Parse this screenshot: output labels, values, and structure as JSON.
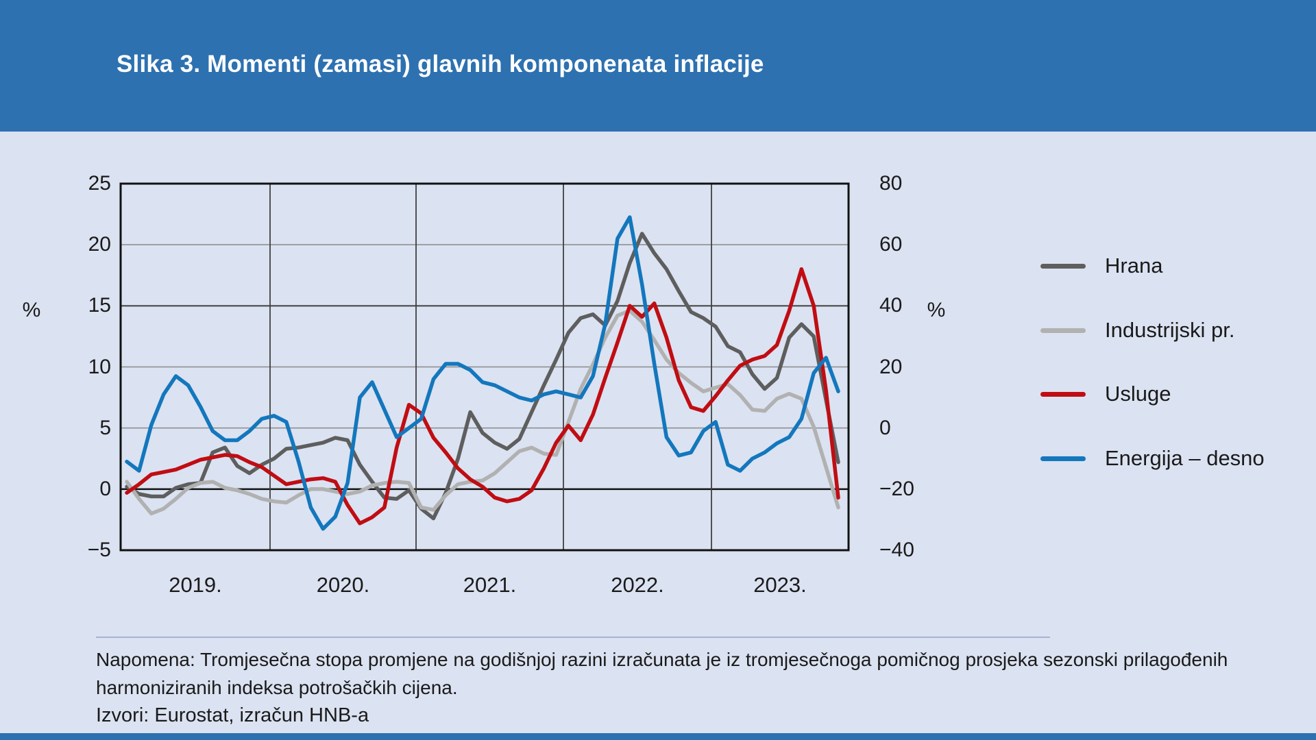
{
  "header": {
    "title": "Slika 3. Momenti (zamasi) glavnih komponenata inflacije"
  },
  "chart_data": {
    "type": "line",
    "frequency": "monthly",
    "period_start": "2019-01",
    "period_end": "2023-11",
    "x_axis": {
      "year_labels": [
        "2019.",
        "2020.",
        "2021.",
        "2022.",
        "2023."
      ]
    },
    "left_axis": {
      "unit_label": "%",
      "min": -5,
      "max": 25,
      "ticks": [
        25,
        20,
        15,
        10,
        5,
        0,
        -5
      ]
    },
    "right_axis": {
      "unit_label": "%",
      "min": -40,
      "max": 80,
      "ticks": [
        80,
        60,
        40,
        20,
        0,
        -20,
        -40
      ]
    },
    "grid": {
      "horizontal": true,
      "vertical": "year-boundaries"
    },
    "legend_position": "right",
    "series": [
      {
        "name": "Hrana",
        "axis": "left",
        "color": "#5e5e5e",
        "values": [
          0.2,
          -0.4,
          -0.6,
          -0.6,
          0.1,
          0.4,
          0.5,
          3.0,
          3.4,
          1.9,
          1.3,
          2.0,
          2.5,
          3.3,
          3.4,
          3.6,
          3.8,
          4.2,
          4.0,
          2.0,
          0.6,
          -0.7,
          -0.8,
          -0.1,
          -1.6,
          -2.4,
          -0.3,
          2.5,
          6.3,
          4.6,
          3.8,
          3.3,
          4.1,
          6.3,
          8.5,
          10.6,
          12.8,
          14.0,
          14.3,
          13.4,
          15.4,
          18.5,
          20.9,
          19.3,
          18.0,
          16.2,
          14.5,
          14.0,
          13.3,
          11.7,
          11.2,
          9.4,
          8.2,
          9.1,
          12.4,
          13.5,
          12.5,
          7.3,
          2.2
        ]
      },
      {
        "name": "Industrijski pr.",
        "axis": "left",
        "color": "#b1b1b1",
        "values": [
          0.6,
          -0.8,
          -2.0,
          -1.6,
          -0.8,
          0.1,
          0.5,
          0.6,
          0.1,
          -0.1,
          -0.4,
          -0.8,
          -1.0,
          -1.1,
          -0.5,
          0.0,
          0.0,
          -0.2,
          -0.4,
          -0.2,
          0.3,
          0.5,
          0.6,
          0.5,
          -1.5,
          -1.7,
          -0.5,
          0.4,
          0.6,
          0.7,
          1.3,
          2.2,
          3.1,
          3.4,
          2.9,
          2.8,
          5.5,
          8.2,
          10.2,
          12.4,
          14.2,
          14.6,
          13.7,
          12.2,
          10.6,
          9.5,
          8.7,
          8.0,
          8.3,
          8.6,
          7.7,
          6.5,
          6.4,
          7.4,
          7.8,
          7.4,
          5.1,
          1.8,
          -1.5
        ]
      },
      {
        "name": "Usluge",
        "axis": "left",
        "color": "#c00d13",
        "values": [
          -0.3,
          0.4,
          1.2,
          1.4,
          1.6,
          2.0,
          2.4,
          2.6,
          2.8,
          2.7,
          2.2,
          1.8,
          1.1,
          0.4,
          0.6,
          0.8,
          0.9,
          0.6,
          -1.3,
          -2.8,
          -2.3,
          -1.5,
          3.4,
          6.9,
          6.2,
          4.2,
          3.0,
          1.7,
          0.8,
          0.2,
          -0.7,
          -1.0,
          -0.8,
          -0.1,
          1.7,
          3.8,
          5.2,
          4.0,
          6.1,
          9.1,
          12.0,
          15.0,
          14.1,
          15.2,
          12.4,
          8.9,
          6.7,
          6.4,
          7.6,
          8.9,
          10.1,
          10.6,
          10.9,
          11.8,
          14.6,
          18.0,
          15.0,
          8.1,
          -0.7
        ]
      },
      {
        "name": "Energija – desno",
        "axis": "right",
        "color": "#1377bd",
        "values": [
          -11,
          -14,
          1,
          11,
          17,
          14,
          7,
          -1,
          -4,
          -4,
          -1,
          3,
          4,
          2,
          -11,
          -26,
          -33,
          -29,
          -18,
          10,
          15,
          6,
          -3,
          0,
          3,
          16,
          21,
          21,
          19,
          15,
          14,
          12,
          10,
          9,
          11,
          12,
          11,
          10,
          17,
          34,
          62,
          69,
          47,
          21,
          -3,
          -9,
          -8,
          -1,
          2,
          -12,
          -14,
          -10,
          -8,
          -5,
          -3,
          3,
          18,
          23,
          12
        ]
      }
    ]
  },
  "footer": {
    "note_line1": "Napomena: Tromjesečna stopa promjene na godišnjoj razini izračunata je iz tromjesečnoga pomičnog prosjeka sezonski prilagođenih",
    "note_line2": "harmoniziranih indeksa potrošačkih cijena.",
    "source": "Izvori: Eurostat, izračun HNB-a"
  },
  "colors": {
    "header_bar": "#2e71b0",
    "bottom_bar": "#2e71b0",
    "background": "#dbe2f1",
    "grid_gray": "#8a8a8a",
    "grid_dark": "#3f3f3f",
    "zero_line": "#111111",
    "text": "#1a1a1a"
  }
}
